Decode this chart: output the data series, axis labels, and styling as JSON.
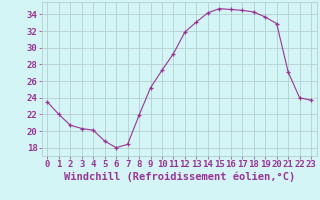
{
  "x": [
    0,
    1,
    2,
    3,
    4,
    5,
    6,
    7,
    8,
    9,
    10,
    11,
    12,
    13,
    14,
    15,
    16,
    17,
    18,
    19,
    20,
    21,
    22,
    23
  ],
  "y": [
    23.5,
    22.0,
    20.7,
    20.3,
    20.1,
    18.8,
    18.0,
    18.4,
    21.9,
    25.2,
    27.3,
    29.3,
    31.9,
    33.1,
    34.2,
    34.7,
    34.6,
    34.5,
    34.3,
    33.7,
    32.9,
    27.1,
    24.0,
    23.7
  ],
  "line_color": "#993399",
  "marker": "+",
  "bg_color": "#d4f5f5",
  "grid_color": "#b0c8c8",
  "xlabel": "Windchill (Refroidissement éolien,°C)",
  "ylim": [
    17.0,
    35.5
  ],
  "xlim": [
    -0.5,
    23.5
  ],
  "yticks": [
    18,
    20,
    22,
    24,
    26,
    28,
    30,
    32,
    34
  ],
  "xtick_labels": [
    "0",
    "1",
    "2",
    "3",
    "4",
    "5",
    "6",
    "7",
    "8",
    "9",
    "10",
    "11",
    "12",
    "13",
    "14",
    "15",
    "16",
    "17",
    "18",
    "19",
    "20",
    "21",
    "22",
    "23"
  ],
  "font_color": "#993399",
  "tick_font_size": 6.5,
  "xlabel_font_size": 7.5
}
